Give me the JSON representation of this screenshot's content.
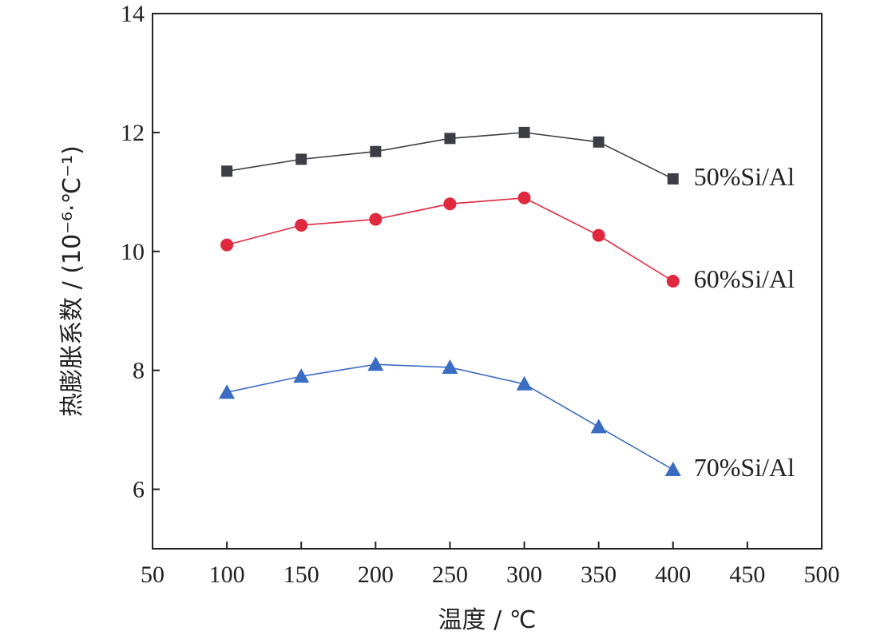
{
  "chart_data": {
    "type": "line",
    "xlabel": "温度 / ℃",
    "ylabel": "热膨胀系数 / (10⁻⁶·℃⁻¹)",
    "xlim": [
      50,
      500
    ],
    "ylim": [
      5,
      14
    ],
    "xticks": [
      50,
      100,
      150,
      200,
      250,
      300,
      350,
      400,
      450,
      500
    ],
    "yticks": [
      6,
      8,
      10,
      12,
      14
    ],
    "grid": false,
    "legend": "inline-right",
    "series": [
      {
        "name": "50%Si/Al",
        "marker": "square",
        "color": "#3d3e45",
        "x": [
          100,
          150,
          200,
          250,
          300,
          350,
          400
        ],
        "y": [
          11.35,
          11.55,
          11.68,
          11.9,
          12.0,
          11.84,
          11.22
        ]
      },
      {
        "name": "60%Si/Al",
        "marker": "circle",
        "color": "#e0283f",
        "x": [
          100,
          150,
          200,
          250,
          300,
          350,
          400
        ],
        "y": [
          10.11,
          10.44,
          10.54,
          10.8,
          10.9,
          10.27,
          9.5
        ]
      },
      {
        "name": "70%Si/Al",
        "marker": "triangle",
        "color": "#3a6cc4",
        "x": [
          100,
          150,
          200,
          250,
          300,
          350,
          400
        ],
        "y": [
          7.63,
          7.9,
          8.1,
          8.05,
          7.77,
          7.05,
          6.33
        ]
      }
    ]
  }
}
